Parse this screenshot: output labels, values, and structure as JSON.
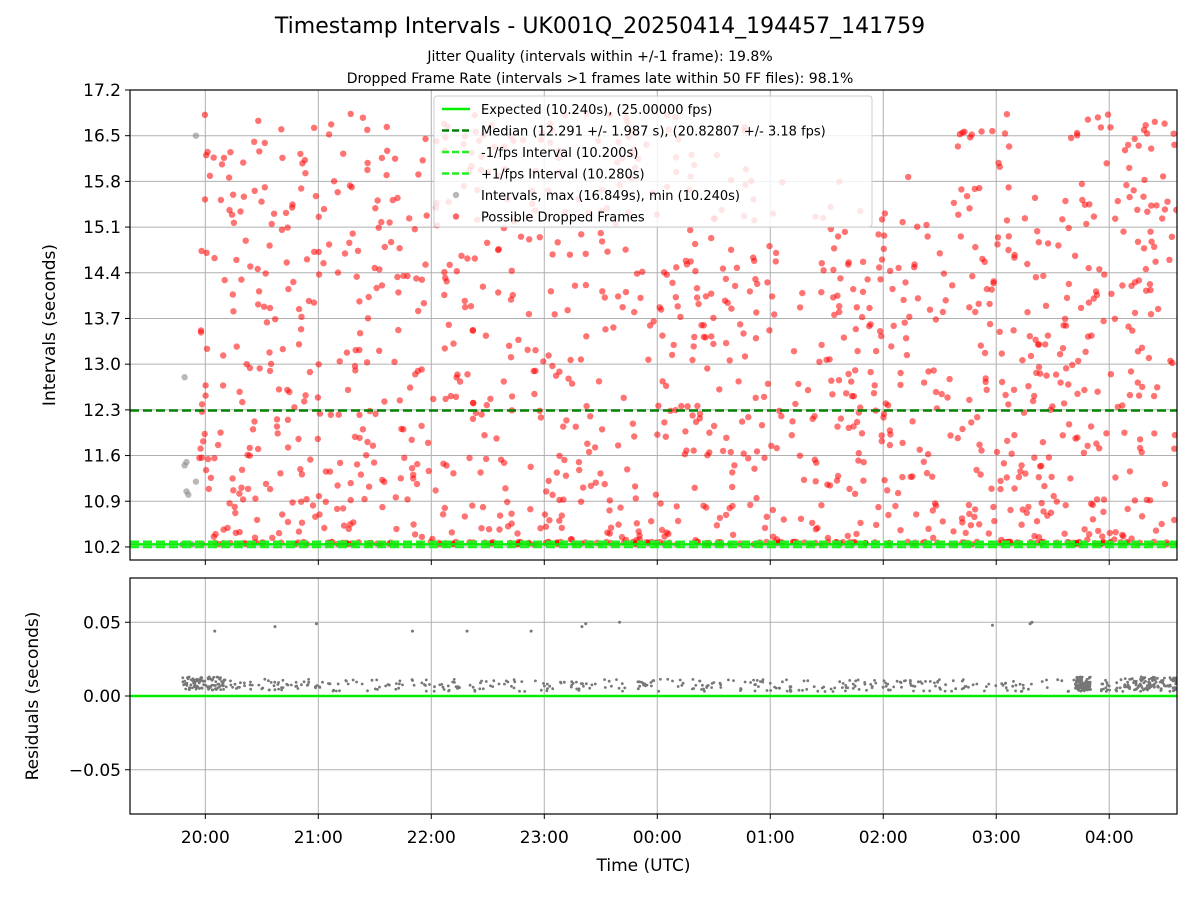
{
  "chart_data": [
    {
      "type": "scatter",
      "title": "Timestamp Intervals - UK001Q_20250414_194457_141759",
      "subtitles": [
        "Jitter Quality (intervals within +/-1 frame): 19.8%",
        "Dropped Frame Rate (intervals >1 frames late within 50 FF files): 98.1%"
      ],
      "ylabel": "Intervals (seconds)",
      "ylim": [
        10.0,
        17.2
      ],
      "yticks": [
        "10.2",
        "10.9",
        "11.6",
        "12.3",
        "13.0",
        "13.7",
        "14.4",
        "15.1",
        "15.8",
        "16.5",
        "17.2"
      ],
      "grid": true,
      "legend_position": "upper-center",
      "lines": [
        {
          "name": "Expected (10.240s), (25.00000 fps)",
          "y": 10.24,
          "style": "solid",
          "color": "#00ee00"
        },
        {
          "name": "Median (12.291 +/- 1.987 s), (20.82807 +/- 3.18 fps)",
          "y": 12.291,
          "style": "dashed",
          "color": "#008000"
        },
        {
          "name": "-1/fps Interval (10.200s)",
          "y": 10.2,
          "style": "dashed",
          "color": "#22ee22"
        },
        {
          "name": "+1/fps Interval (10.280s)",
          "y": 10.28,
          "style": "dashed",
          "color": "#22ee22"
        }
      ],
      "series": [
        {
          "name": "Intervals, max (16.849s), min (10.240s)",
          "color": "#888888",
          "points": [
            [
              "19:48",
              10.24
            ],
            [
              "19:48",
              10.24
            ],
            [
              "19:49",
              12.8
            ],
            [
              "19:49",
              11.45
            ],
            [
              "19:50",
              11.5
            ],
            [
              "19:50",
              11.05
            ],
            [
              "19:51",
              11.0
            ],
            [
              "19:52",
              10.24
            ],
            [
              "19:53",
              10.24
            ],
            [
              "19:55",
              11.2
            ],
            [
              "19:55",
              16.5
            ]
          ]
        },
        {
          "name": "Possible Dropped Frames",
          "color": "#ff0000",
          "count": 1400,
          "x_range": [
            "19:56",
            "04:36"
          ],
          "y_range": [
            10.24,
            16.849
          ],
          "baseline_y": 10.24
        }
      ]
    },
    {
      "type": "scatter",
      "xlabel": "Time (UTC)",
      "ylabel": "Residuals (seconds)",
      "xlim": [
        "19:20",
        "04:36"
      ],
      "ylim": [
        -0.08,
        0.08
      ],
      "xticks": [
        "20:00",
        "21:00",
        "22:00",
        "23:00",
        "00:00",
        "01:00",
        "02:00",
        "03:00",
        "04:00"
      ],
      "yticks": [
        "0.05",
        "0.00",
        "−0.05"
      ],
      "grid": true,
      "zero_line": {
        "y": 0.0,
        "color": "#00ee00"
      },
      "series": [
        {
          "color": "#777777",
          "outliers": [
            [
              "20:05",
              0.044
            ],
            [
              "20:37",
              0.047
            ],
            [
              "20:59",
              0.049
            ],
            [
              "21:50",
              0.044
            ],
            [
              "22:19",
              0.044
            ],
            [
              "22:53",
              0.044
            ],
            [
              "23:20",
              0.047
            ],
            [
              "23:22",
              0.049
            ],
            [
              "23:40",
              0.05
            ],
            [
              "02:58",
              0.048
            ],
            [
              "03:18",
              0.049
            ],
            [
              "03:19",
              0.05
            ]
          ],
          "typical_range": [
            0.003,
            0.015
          ],
          "dense_clusters": [
            [
              "19:48",
              "20:10"
            ],
            [
              "03:42",
              "03:50"
            ],
            [
              "04:08",
              "04:36"
            ]
          ]
        }
      ]
    }
  ]
}
